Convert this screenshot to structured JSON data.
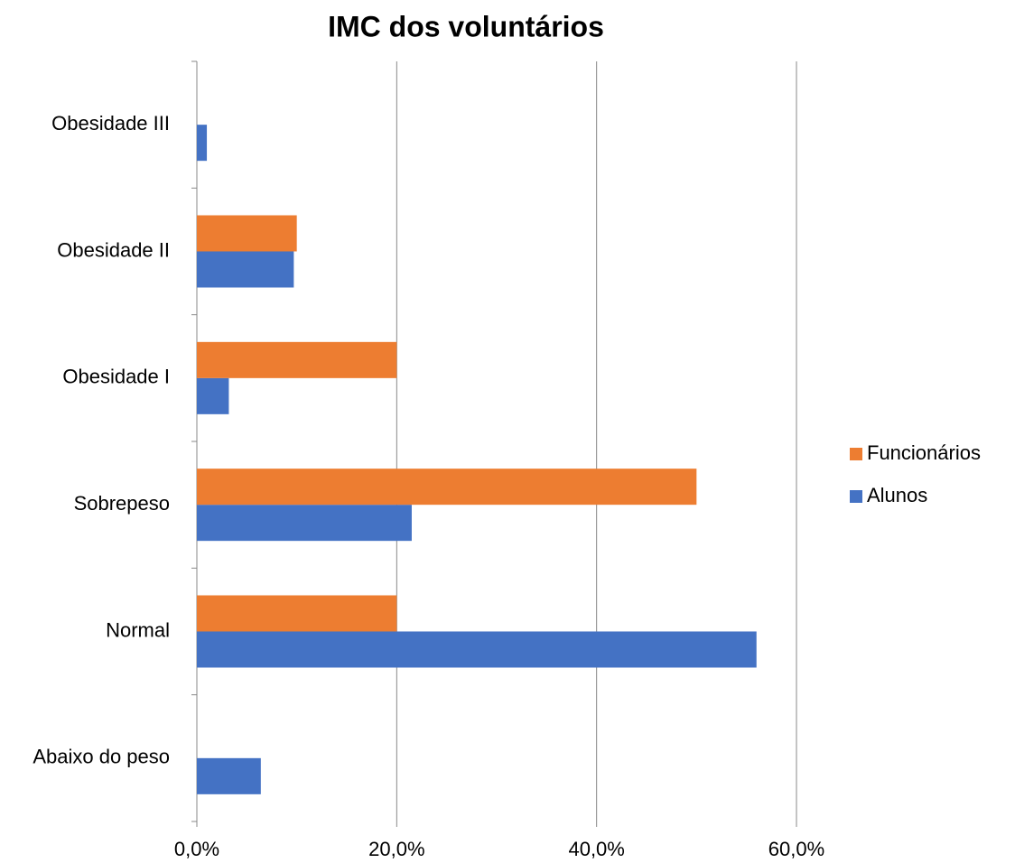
{
  "chart_data": {
    "type": "bar",
    "orientation": "horizontal",
    "title": "IMC dos voluntários",
    "categories": [
      "Abaixo do peso",
      "Normal",
      "Sobrepeso",
      "Obesidade I",
      "Obesidade II",
      "Obesidade III"
    ],
    "series": [
      {
        "name": "Alunos",
        "color": "#4472c4",
        "values": [
          6.4,
          56.0,
          21.5,
          3.2,
          9.7,
          1.0
        ]
      },
      {
        "name": "Funcionários",
        "color": "#ed7d31",
        "values": [
          0,
          20,
          50,
          20,
          10,
          0
        ]
      }
    ],
    "xlim": [
      0,
      60
    ],
    "xticks": [
      {
        "value": 0,
        "label": "0,0%"
      },
      {
        "value": 20,
        "label": "20,0%"
      },
      {
        "value": 40,
        "label": "40,0%"
      },
      {
        "value": 60,
        "label": "60,0%"
      }
    ],
    "grid": true,
    "legend": "right"
  }
}
